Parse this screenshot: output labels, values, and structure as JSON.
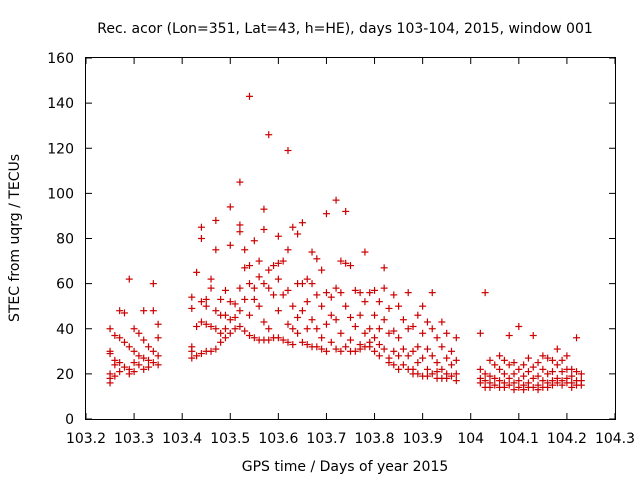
{
  "chart_data": {
    "type": "scatter",
    "title": "Rec. acor (Lon=351, Lat=43, h=HE), days 103-104, 2015, window 001",
    "xlabel": "GPS time / Days of year 2015",
    "ylabel": "STEC from uqrg / TECUs",
    "xlim": [
      103.2,
      104.3
    ],
    "ylim": [
      0,
      160
    ],
    "xticks": [
      "103.2",
      "103.3",
      "103.4",
      "103.5",
      "103.6",
      "103.7",
      "103.8",
      "103.9",
      "104",
      "104.1",
      "104.2",
      "104.3"
    ],
    "yticks": [
      "0",
      "20",
      "40",
      "60",
      "80",
      "100",
      "120",
      "140",
      "160"
    ],
    "grid": false,
    "legend": "none",
    "marker": "+",
    "color": "#cc0000",
    "points": [
      [
        103.25,
        40
      ],
      [
        103.25,
        30
      ],
      [
        103.25,
        29
      ],
      [
        103.25,
        20
      ],
      [
        103.25,
        18
      ],
      [
        103.25,
        16
      ],
      [
        103.26,
        37
      ],
      [
        103.26,
        26
      ],
      [
        103.26,
        24
      ],
      [
        103.26,
        19
      ],
      [
        103.27,
        48
      ],
      [
        103.27,
        36
      ],
      [
        103.27,
        25
      ],
      [
        103.27,
        21
      ],
      [
        103.28,
        47
      ],
      [
        103.28,
        34
      ],
      [
        103.28,
        23
      ],
      [
        103.29,
        62
      ],
      [
        103.29,
        32
      ],
      [
        103.29,
        22
      ],
      [
        103.29,
        20
      ],
      [
        103.3,
        40
      ],
      [
        103.3,
        30
      ],
      [
        103.3,
        25
      ],
      [
        103.3,
        21
      ],
      [
        103.31,
        38
      ],
      [
        103.31,
        28
      ],
      [
        103.31,
        24
      ],
      [
        103.32,
        48
      ],
      [
        103.32,
        35
      ],
      [
        103.32,
        27
      ],
      [
        103.32,
        22
      ],
      [
        103.33,
        32
      ],
      [
        103.33,
        26
      ],
      [
        103.33,
        23
      ],
      [
        103.34,
        60
      ],
      [
        103.34,
        48
      ],
      [
        103.34,
        30
      ],
      [
        103.34,
        25
      ],
      [
        103.35,
        42
      ],
      [
        103.35,
        36
      ],
      [
        103.35,
        28
      ],
      [
        103.35,
        24
      ],
      [
        103.42,
        54
      ],
      [
        103.42,
        49
      ],
      [
        103.42,
        32
      ],
      [
        103.42,
        30
      ],
      [
        103.42,
        27
      ],
      [
        103.43,
        65
      ],
      [
        103.43,
        41
      ],
      [
        103.43,
        28
      ],
      [
        103.44,
        85
      ],
      [
        103.44,
        80
      ],
      [
        103.44,
        52
      ],
      [
        103.44,
        43
      ],
      [
        103.44,
        29
      ],
      [
        103.45,
        53
      ],
      [
        103.45,
        50
      ],
      [
        103.45,
        42
      ],
      [
        103.45,
        30
      ],
      [
        103.46,
        62
      ],
      [
        103.46,
        58
      ],
      [
        103.46,
        41
      ],
      [
        103.46,
        30
      ],
      [
        103.47,
        88
      ],
      [
        103.47,
        75
      ],
      [
        103.47,
        48
      ],
      [
        103.47,
        40
      ],
      [
        103.47,
        31
      ],
      [
        103.48,
        53
      ],
      [
        103.48,
        46
      ],
      [
        103.48,
        38
      ],
      [
        103.48,
        34
      ],
      [
        103.49,
        57
      ],
      [
        103.49,
        46
      ],
      [
        103.49,
        40
      ],
      [
        103.49,
        36
      ],
      [
        103.5,
        94
      ],
      [
        103.5,
        77
      ],
      [
        103.5,
        52
      ],
      [
        103.5,
        44
      ],
      [
        103.5,
        38
      ],
      [
        103.51,
        51
      ],
      [
        103.51,
        45
      ],
      [
        103.51,
        40
      ],
      [
        103.52,
        105
      ],
      [
        103.52,
        86
      ],
      [
        103.52,
        83
      ],
      [
        103.52,
        58
      ],
      [
        103.52,
        48
      ],
      [
        103.52,
        41
      ],
      [
        103.53,
        75
      ],
      [
        103.53,
        67
      ],
      [
        103.53,
        53
      ],
      [
        103.53,
        39
      ],
      [
        103.54,
        143
      ],
      [
        103.54,
        68
      ],
      [
        103.54,
        60
      ],
      [
        103.54,
        46
      ],
      [
        103.54,
        37
      ],
      [
        103.55,
        79
      ],
      [
        103.55,
        58
      ],
      [
        103.55,
        53
      ],
      [
        103.55,
        36
      ],
      [
        103.56,
        70
      ],
      [
        103.56,
        63
      ],
      [
        103.56,
        50
      ],
      [
        103.56,
        35
      ],
      [
        103.57,
        93
      ],
      [
        103.57,
        84
      ],
      [
        103.57,
        60
      ],
      [
        103.57,
        43
      ],
      [
        103.57,
        35
      ],
      [
        103.58,
        126
      ],
      [
        103.58,
        66
      ],
      [
        103.58,
        58
      ],
      [
        103.58,
        40
      ],
      [
        103.58,
        35
      ],
      [
        103.59,
        68
      ],
      [
        103.59,
        55
      ],
      [
        103.59,
        36
      ],
      [
        103.6,
        81
      ],
      [
        103.6,
        69
      ],
      [
        103.6,
        62
      ],
      [
        103.6,
        48
      ],
      [
        103.6,
        36
      ],
      [
        103.61,
        70
      ],
      [
        103.61,
        55
      ],
      [
        103.61,
        35
      ],
      [
        103.62,
        119
      ],
      [
        103.62,
        75
      ],
      [
        103.62,
        57
      ],
      [
        103.62,
        42
      ],
      [
        103.62,
        34
      ],
      [
        103.63,
        85
      ],
      [
        103.63,
        50
      ],
      [
        103.63,
        40
      ],
      [
        103.63,
        33
      ],
      [
        103.64,
        82
      ],
      [
        103.64,
        60
      ],
      [
        103.64,
        45
      ],
      [
        103.64,
        38
      ],
      [
        103.65,
        87
      ],
      [
        103.65,
        60
      ],
      [
        103.65,
        48
      ],
      [
        103.65,
        34
      ],
      [
        103.66,
        62
      ],
      [
        103.66,
        52
      ],
      [
        103.66,
        40
      ],
      [
        103.66,
        33
      ],
      [
        103.67,
        74
      ],
      [
        103.67,
        60
      ],
      [
        103.67,
        44
      ],
      [
        103.67,
        32
      ],
      [
        103.68,
        71
      ],
      [
        103.68,
        55
      ],
      [
        103.68,
        40
      ],
      [
        103.68,
        32
      ],
      [
        103.69,
        66
      ],
      [
        103.69,
        50
      ],
      [
        103.69,
        36
      ],
      [
        103.69,
        31
      ],
      [
        103.7,
        91
      ],
      [
        103.7,
        56
      ],
      [
        103.7,
        42
      ],
      [
        103.7,
        30
      ],
      [
        103.71,
        54
      ],
      [
        103.71,
        46
      ],
      [
        103.71,
        34
      ],
      [
        103.72,
        97
      ],
      [
        103.72,
        58
      ],
      [
        103.72,
        44
      ],
      [
        103.72,
        31
      ],
      [
        103.73,
        70
      ],
      [
        103.73,
        56
      ],
      [
        103.73,
        38
      ],
      [
        103.73,
        30
      ],
      [
        103.74,
        92
      ],
      [
        103.74,
        69
      ],
      [
        103.74,
        50
      ],
      [
        103.74,
        32
      ],
      [
        103.75,
        68
      ],
      [
        103.75,
        45
      ],
      [
        103.75,
        35
      ],
      [
        103.75,
        30
      ],
      [
        103.76,
        57
      ],
      [
        103.76,
        41
      ],
      [
        103.76,
        30
      ],
      [
        103.77,
        56
      ],
      [
        103.77,
        46
      ],
      [
        103.77,
        33
      ],
      [
        103.77,
        31
      ],
      [
        103.78,
        74
      ],
      [
        103.78,
        52
      ],
      [
        103.78,
        38
      ],
      [
        103.78,
        32
      ],
      [
        103.79,
        56
      ],
      [
        103.79,
        40
      ],
      [
        103.79,
        34
      ],
      [
        103.79,
        32
      ],
      [
        103.8,
        57
      ],
      [
        103.8,
        46
      ],
      [
        103.8,
        36
      ],
      [
        103.8,
        30
      ],
      [
        103.81,
        52
      ],
      [
        103.81,
        40
      ],
      [
        103.81,
        33
      ],
      [
        103.81,
        28
      ],
      [
        103.82,
        67
      ],
      [
        103.82,
        58
      ],
      [
        103.82,
        44
      ],
      [
        103.82,
        31
      ],
      [
        103.83,
        49
      ],
      [
        103.83,
        38
      ],
      [
        103.83,
        27
      ],
      [
        103.83,
        25
      ],
      [
        103.84,
        55
      ],
      [
        103.84,
        39
      ],
      [
        103.84,
        30
      ],
      [
        103.84,
        24
      ],
      [
        103.85,
        50
      ],
      [
        103.85,
        36
      ],
      [
        103.85,
        28
      ],
      [
        103.85,
        22
      ],
      [
        103.86,
        44
      ],
      [
        103.86,
        31
      ],
      [
        103.86,
        24
      ],
      [
        103.87,
        56
      ],
      [
        103.87,
        40
      ],
      [
        103.87,
        28
      ],
      [
        103.87,
        22
      ],
      [
        103.88,
        41
      ],
      [
        103.88,
        30
      ],
      [
        103.88,
        22
      ],
      [
        103.88,
        20
      ],
      [
        103.89,
        46
      ],
      [
        103.89,
        32
      ],
      [
        103.89,
        25
      ],
      [
        103.89,
        20
      ],
      [
        103.9,
        50
      ],
      [
        103.9,
        38
      ],
      [
        103.9,
        27
      ],
      [
        103.9,
        19
      ],
      [
        103.91,
        43
      ],
      [
        103.91,
        31
      ],
      [
        103.91,
        22
      ],
      [
        103.91,
        19
      ],
      [
        103.92,
        56
      ],
      [
        103.92,
        40
      ],
      [
        103.92,
        28
      ],
      [
        103.92,
        20
      ],
      [
        103.93,
        36
      ],
      [
        103.93,
        25
      ],
      [
        103.93,
        21
      ],
      [
        103.93,
        18
      ],
      [
        103.94,
        43
      ],
      [
        103.94,
        32
      ],
      [
        103.94,
        22
      ],
      [
        103.94,
        18
      ],
      [
        103.95,
        38
      ],
      [
        103.95,
        27
      ],
      [
        103.95,
        20
      ],
      [
        103.95,
        18
      ],
      [
        103.96,
        30
      ],
      [
        103.96,
        24
      ],
      [
        103.96,
        19
      ],
      [
        103.97,
        36
      ],
      [
        103.97,
        26
      ],
      [
        103.97,
        20
      ],
      [
        103.97,
        17
      ],
      [
        104.02,
        38
      ],
      [
        104.02,
        22
      ],
      [
        104.02,
        18
      ],
      [
        104.02,
        16
      ],
      [
        104.03,
        56
      ],
      [
        104.03,
        20
      ],
      [
        104.03,
        17
      ],
      [
        104.03,
        14
      ],
      [
        104.04,
        26
      ],
      [
        104.04,
        19
      ],
      [
        104.04,
        16
      ],
      [
        104.04,
        14
      ],
      [
        104.05,
        24
      ],
      [
        104.05,
        18
      ],
      [
        104.05,
        15
      ],
      [
        104.06,
        28
      ],
      [
        104.06,
        22
      ],
      [
        104.06,
        17
      ],
      [
        104.06,
        14
      ],
      [
        104.07,
        26
      ],
      [
        104.07,
        20
      ],
      [
        104.07,
        16
      ],
      [
        104.07,
        14
      ],
      [
        104.08,
        37
      ],
      [
        104.08,
        24
      ],
      [
        104.08,
        18
      ],
      [
        104.08,
        15
      ],
      [
        104.09,
        25
      ],
      [
        104.09,
        20
      ],
      [
        104.09,
        16
      ],
      [
        104.09,
        13
      ],
      [
        104.1,
        41
      ],
      [
        104.1,
        22
      ],
      [
        104.1,
        17
      ],
      [
        104.1,
        14
      ],
      [
        104.11,
        24
      ],
      [
        104.11,
        19
      ],
      [
        104.11,
        15
      ],
      [
        104.11,
        13
      ],
      [
        104.12,
        27
      ],
      [
        104.12,
        21
      ],
      [
        104.12,
        16
      ],
      [
        104.12,
        14
      ],
      [
        104.13,
        37
      ],
      [
        104.13,
        23
      ],
      [
        104.13,
        18
      ],
      [
        104.13,
        14
      ],
      [
        104.14,
        25
      ],
      [
        104.14,
        19
      ],
      [
        104.14,
        15
      ],
      [
        104.14,
        13
      ],
      [
        104.15,
        28
      ],
      [
        104.15,
        22
      ],
      [
        104.15,
        17
      ],
      [
        104.15,
        14
      ],
      [
        104.16,
        27
      ],
      [
        104.16,
        20
      ],
      [
        104.16,
        16
      ],
      [
        104.16,
        14
      ],
      [
        104.17,
        26
      ],
      [
        104.17,
        21
      ],
      [
        104.17,
        17
      ],
      [
        104.17,
        15
      ],
      [
        104.18,
        31
      ],
      [
        104.18,
        24
      ],
      [
        104.18,
        18
      ],
      [
        104.18,
        16
      ],
      [
        104.19,
        26
      ],
      [
        104.19,
        21
      ],
      [
        104.19,
        17
      ],
      [
        104.19,
        15
      ],
      [
        104.2,
        28
      ],
      [
        104.2,
        22
      ],
      [
        104.2,
        18
      ],
      [
        104.2,
        16
      ],
      [
        104.21,
        22
      ],
      [
        104.21,
        19
      ],
      [
        104.21,
        16
      ],
      [
        104.21,
        14
      ],
      [
        104.22,
        36
      ],
      [
        104.22,
        21
      ],
      [
        104.22,
        17
      ],
      [
        104.22,
        15
      ],
      [
        104.23,
        20
      ],
      [
        104.23,
        17
      ],
      [
        104.23,
        15
      ]
    ]
  }
}
